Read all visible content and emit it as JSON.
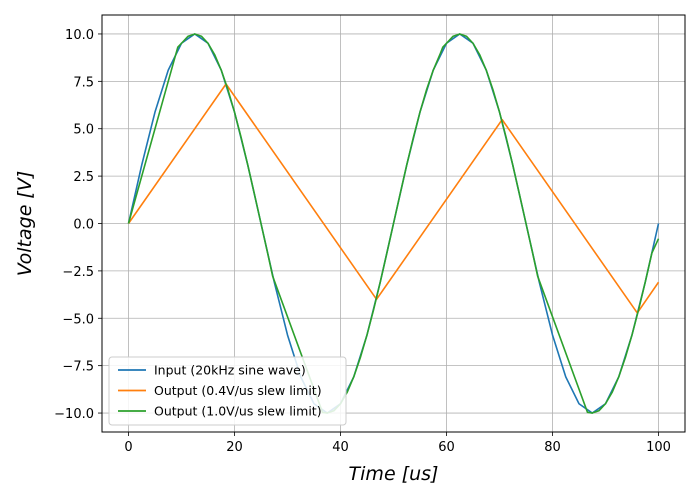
{
  "chart_data": {
    "type": "line",
    "title": "",
    "xlabel": "Time [us]",
    "ylabel": "Voltage [V]",
    "xlim": [
      -5,
      105
    ],
    "ylim": [
      -11,
      11
    ],
    "x_ticks": [
      0,
      20,
      40,
      60,
      80,
      100
    ],
    "x_tick_labels": [
      "0",
      "20",
      "40",
      "60",
      "80",
      "100"
    ],
    "y_ticks": [
      10.0,
      7.5,
      5.0,
      2.5,
      0.0,
      -2.5,
      -5.0,
      -7.5,
      -10.0
    ],
    "y_tick_labels": [
      "10.0",
      "7.5",
      "5.0",
      "2.5",
      "0.0",
      "−2.5",
      "−5.0",
      "−7.5",
      "−10.0"
    ],
    "grid": true,
    "legend_position": "lower-left",
    "series": [
      {
        "name": "Input (20kHz sine wave)",
        "color": "#1f77b4",
        "x": [
          0,
          2.5,
          5,
          7.5,
          10,
          12.5,
          15,
          17.5,
          20,
          22.5,
          25,
          27.5,
          30,
          32.5,
          35,
          37.5,
          40,
          42.5,
          45,
          47.5,
          50,
          52.5,
          55,
          57.5,
          60,
          62.5,
          65,
          67.5,
          70,
          72.5,
          75,
          77.5,
          80,
          82.5,
          85,
          87.5,
          90,
          92.5,
          95,
          97.5,
          100
        ],
        "y": [
          0,
          3.09,
          5.88,
          8.09,
          9.51,
          10.0,
          9.51,
          8.09,
          5.88,
          3.09,
          0,
          -3.09,
          -5.88,
          -8.09,
          -9.51,
          -10.0,
          -9.51,
          -8.09,
          -5.88,
          -3.09,
          0,
          3.09,
          5.88,
          8.09,
          9.51,
          10.0,
          9.51,
          8.09,
          5.88,
          3.09,
          0,
          -3.09,
          -5.88,
          -8.09,
          -9.51,
          -10.0,
          -9.51,
          -8.09,
          -5.88,
          -3.09,
          0
        ]
      },
      {
        "name": "Output (0.4V/us slew limit)",
        "color": "#ff7f0e",
        "x": [
          0,
          18.4,
          46.8,
          70.5,
          96.0,
          100
        ],
        "y": [
          0,
          7.36,
          -4.0,
          5.48,
          -4.72,
          -3.1
        ]
      },
      {
        "name": "Output (1.0V/us slew limit)",
        "color": "#2ca02c",
        "x": [
          0,
          9.3,
          10,
          11.25,
          12.5,
          13.75,
          15,
          16.25,
          17.5,
          18.75,
          20,
          21.25,
          22.5,
          23.75,
          25,
          26.25,
          27.2,
          36.6,
          37.5,
          38.75,
          40,
          41.25,
          42.5,
          43.75,
          45,
          46.25,
          47.5,
          48.75,
          50,
          51.25,
          52.5,
          53.75,
          55,
          56.25,
          57.5,
          58.75,
          59.3,
          60,
          61.25,
          62.5,
          63.75,
          65,
          66.25,
          67.5,
          68.75,
          70,
          71.25,
          72.5,
          73.75,
          75,
          76.25,
          77.2,
          86.6,
          87.5,
          88.75,
          90,
          91.25,
          92.5,
          93.75,
          95,
          96.25,
          97.5,
          98.75,
          100
        ],
        "y": [
          0,
          9.3,
          9.51,
          9.88,
          10.0,
          9.88,
          9.51,
          8.91,
          8.09,
          7.07,
          5.88,
          4.54,
          3.09,
          1.56,
          0.0,
          -1.56,
          -2.78,
          -9.96,
          -10.0,
          -9.88,
          -9.51,
          -8.91,
          -8.09,
          -7.07,
          -5.88,
          -4.54,
          -3.09,
          -1.56,
          0.0,
          1.56,
          3.09,
          4.54,
          5.88,
          7.07,
          8.09,
          8.91,
          9.3,
          9.51,
          9.88,
          10.0,
          9.88,
          9.51,
          8.91,
          8.09,
          7.07,
          5.88,
          4.54,
          3.09,
          1.56,
          0.0,
          -1.56,
          -2.78,
          -9.96,
          -10.0,
          -9.88,
          -9.51,
          -8.91,
          -8.09,
          -7.07,
          -5.88,
          -4.54,
          -3.09,
          -1.56,
          -0.8
        ]
      }
    ]
  }
}
